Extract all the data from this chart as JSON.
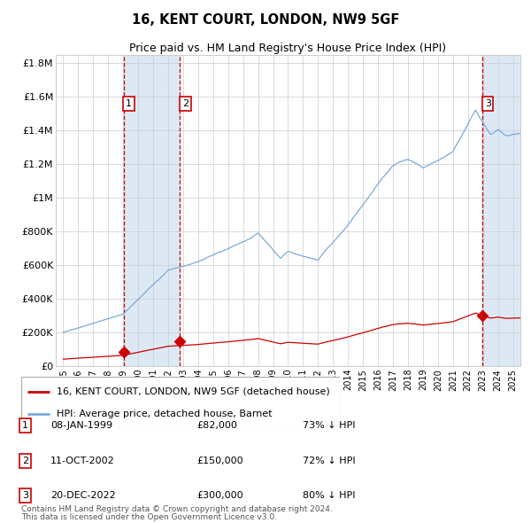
{
  "title": "16, KENT COURT, LONDON, NW9 5GF",
  "subtitle": "Price paid vs. HM Land Registry's House Price Index (HPI)",
  "xmin": 1994.5,
  "xmax": 2025.5,
  "ymin": 0,
  "ymax": 1850000,
  "yticks": [
    0,
    200000,
    400000,
    600000,
    800000,
    1000000,
    1200000,
    1400000,
    1600000,
    1800000
  ],
  "ytick_labels": [
    "£0",
    "£200K",
    "£400K",
    "£600K",
    "£800K",
    "£1M",
    "£1.2M",
    "£1.4M",
    "£1.6M",
    "£1.8M"
  ],
  "sale_dates": [
    1999.03,
    2002.78,
    2022.97
  ],
  "sale_prices": [
    82000,
    150000,
    300000
  ],
  "sale_labels": [
    "1",
    "2",
    "3"
  ],
  "sale_label_dates": [
    "08-JAN-1999",
    "11-OCT-2002",
    "20-DEC-2022"
  ],
  "sale_price_strs": [
    "£82,000",
    "£150,000",
    "£300,000"
  ],
  "sale_hpi_strs": [
    "73% ↓ HPI",
    "72% ↓ HPI",
    "80% ↓ HPI"
  ],
  "hpi_color": "#7aaadd",
  "price_color": "#cc0000",
  "shade_color": "#dce9f5",
  "grid_color": "#cccccc",
  "bg_color": "#ffffff",
  "legend_label_price": "16, KENT COURT, LONDON, NW9 5GF (detached house)",
  "legend_label_hpi": "HPI: Average price, detached house, Barnet",
  "footer1": "Contains HM Land Registry data © Crown copyright and database right 2024.",
  "footer2": "This data is licensed under the Open Government Licence v3.0.",
  "xticks": [
    1995,
    1996,
    1997,
    1998,
    1999,
    2000,
    2001,
    2002,
    2003,
    2004,
    2005,
    2006,
    2007,
    2008,
    2009,
    2010,
    2011,
    2012,
    2013,
    2014,
    2015,
    2016,
    2017,
    2018,
    2019,
    2020,
    2021,
    2022,
    2023,
    2024,
    2025
  ],
  "label_ybox": 1560000
}
